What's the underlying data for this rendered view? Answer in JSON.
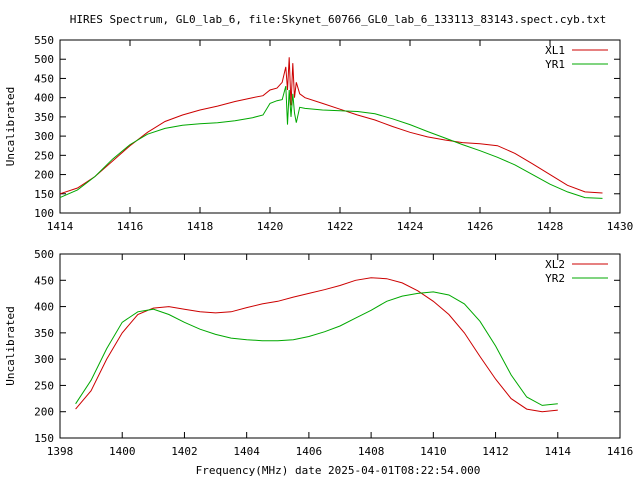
{
  "title": "HIRES Spectrum, GL0_lab_6, file:Skynet_60766_GL0_lab_6_133113_83143.spect.cyb.txt",
  "xlabel": "Frequency(MHz) date 2025-04-01T08:22:54.000",
  "colors": {
    "red": "#cc0000",
    "green": "#00a800"
  },
  "chart_data": [
    {
      "type": "line",
      "ylabel": "Uncalibrated",
      "xlim": [
        1414,
        1430
      ],
      "ylim": [
        100,
        550
      ],
      "xticks": [
        1414,
        1416,
        1418,
        1420,
        1422,
        1424,
        1426,
        1428,
        1430
      ],
      "yticks": [
        100,
        150,
        200,
        250,
        300,
        350,
        400,
        450,
        500,
        550
      ],
      "legend_position": "top-right",
      "series": [
        {
          "name": "XL1",
          "color": "#cc0000",
          "x": [
            1414.0,
            1414.5,
            1415.0,
            1415.5,
            1416.0,
            1416.5,
            1417.0,
            1417.5,
            1418.0,
            1418.5,
            1419.0,
            1419.5,
            1419.8,
            1420.0,
            1420.2,
            1420.35,
            1420.45,
            1420.5,
            1420.55,
            1420.6,
            1420.65,
            1420.7,
            1420.75,
            1420.85,
            1421.0,
            1421.5,
            1422.0,
            1422.5,
            1423.0,
            1423.5,
            1424.0,
            1424.5,
            1425.0,
            1425.5,
            1426.0,
            1426.5,
            1427.0,
            1427.5,
            1428.0,
            1428.5,
            1429.0,
            1429.5
          ],
          "y": [
            150,
            165,
            195,
            235,
            275,
            310,
            338,
            355,
            368,
            378,
            390,
            400,
            405,
            420,
            425,
            440,
            480,
            420,
            505,
            380,
            490,
            400,
            440,
            410,
            400,
            385,
            370,
            355,
            342,
            325,
            310,
            298,
            290,
            283,
            280,
            275,
            255,
            228,
            200,
            172,
            155,
            152
          ]
        },
        {
          "name": "YR1",
          "color": "#00a800",
          "x": [
            1414.0,
            1414.5,
            1415.0,
            1415.5,
            1416.0,
            1416.5,
            1417.0,
            1417.5,
            1418.0,
            1418.5,
            1419.0,
            1419.5,
            1419.8,
            1420.0,
            1420.2,
            1420.35,
            1420.45,
            1420.5,
            1420.55,
            1420.6,
            1420.65,
            1420.7,
            1420.75,
            1420.85,
            1421.0,
            1421.5,
            1422.0,
            1422.5,
            1423.0,
            1423.5,
            1424.0,
            1424.5,
            1425.0,
            1425.5,
            1426.0,
            1426.5,
            1427.0,
            1427.5,
            1428.0,
            1428.5,
            1429.0,
            1429.5
          ],
          "y": [
            140,
            160,
            195,
            240,
            278,
            305,
            320,
            328,
            332,
            335,
            340,
            348,
            355,
            385,
            392,
            395,
            430,
            330,
            420,
            350,
            410,
            360,
            335,
            375,
            372,
            368,
            366,
            364,
            358,
            345,
            330,
            312,
            295,
            278,
            262,
            245,
            225,
            200,
            175,
            155,
            140,
            138
          ]
        }
      ]
    },
    {
      "type": "line",
      "ylabel": "Uncalibrated",
      "xlim": [
        1398,
        1416
      ],
      "ylim": [
        150,
        500
      ],
      "xticks": [
        1398,
        1400,
        1402,
        1404,
        1406,
        1408,
        1410,
        1412,
        1414,
        1416
      ],
      "yticks": [
        150,
        200,
        250,
        300,
        350,
        400,
        450,
        500
      ],
      "legend_position": "top-right",
      "series": [
        {
          "name": "XL2",
          "color": "#cc0000",
          "x": [
            1398.5,
            1399.0,
            1399.5,
            1400.0,
            1400.5,
            1401.0,
            1401.5,
            1402.0,
            1402.5,
            1403.0,
            1403.5,
            1404.0,
            1404.5,
            1405.0,
            1405.5,
            1406.0,
            1406.5,
            1407.0,
            1407.5,
            1408.0,
            1408.5,
            1409.0,
            1409.5,
            1410.0,
            1410.5,
            1411.0,
            1411.5,
            1412.0,
            1412.5,
            1413.0,
            1413.5,
            1414.0
          ],
          "y": [
            205,
            240,
            300,
            350,
            385,
            397,
            400,
            395,
            390,
            388,
            390,
            398,
            405,
            410,
            418,
            425,
            432,
            440,
            450,
            455,
            453,
            445,
            430,
            410,
            385,
            350,
            305,
            262,
            225,
            205,
            200,
            203
          ]
        },
        {
          "name": "YR2",
          "color": "#00a800",
          "x": [
            1398.5,
            1399.0,
            1399.5,
            1400.0,
            1400.5,
            1401.0,
            1401.5,
            1402.0,
            1402.5,
            1403.0,
            1403.5,
            1404.0,
            1404.5,
            1405.0,
            1405.5,
            1406.0,
            1406.5,
            1407.0,
            1407.5,
            1408.0,
            1408.5,
            1409.0,
            1409.5,
            1410.0,
            1410.5,
            1411.0,
            1411.5,
            1412.0,
            1412.5,
            1413.0,
            1413.5,
            1414.0
          ],
          "y": [
            215,
            260,
            320,
            370,
            390,
            395,
            385,
            370,
            357,
            347,
            340,
            337,
            335,
            335,
            337,
            343,
            352,
            363,
            378,
            393,
            410,
            420,
            425,
            428,
            422,
            405,
            372,
            325,
            270,
            228,
            212,
            215
          ]
        }
      ]
    }
  ]
}
